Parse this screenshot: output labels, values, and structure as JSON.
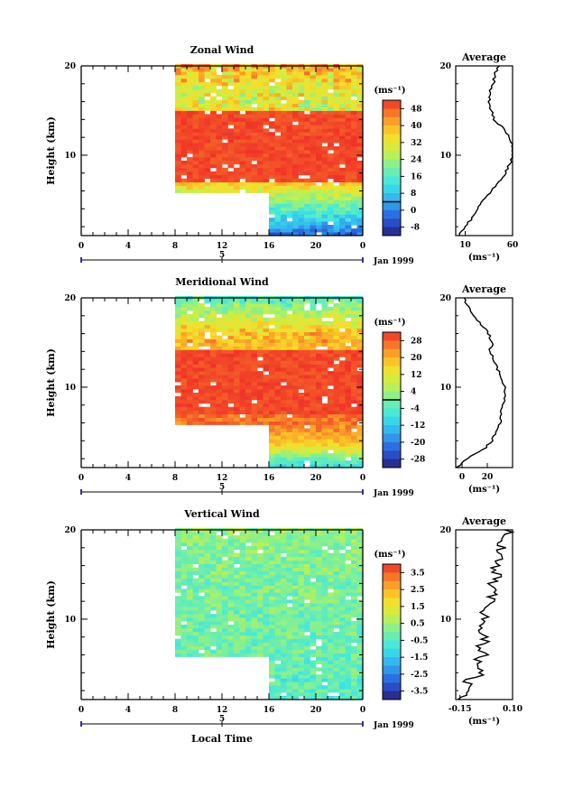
{
  "figure": {
    "xlabel": "Local Time",
    "date_label": "Jan 1999",
    "day_label": "5",
    "profile_title": "Average",
    "colorbar_unit": "(ms⁻¹)"
  },
  "chart_data": [
    {
      "type": "heatmap",
      "title": "Zonal Wind",
      "ylabel": "Height (km)",
      "xlabel": "",
      "x_ticks": [
        "0",
        "4",
        "8",
        "12",
        "16",
        "20",
        "0"
      ],
      "y_ticks": [
        "10",
        "20"
      ],
      "xlim": [
        0,
        24
      ],
      "ylim": [
        1,
        20
      ],
      "colorbar": {
        "ticks": [
          "48",
          "40",
          "32",
          "24",
          "16",
          "8",
          "0",
          "-8"
        ],
        "range": [
          -12,
          52
        ]
      },
      "profile": {
        "title": "Average",
        "xlabel": "(ms⁻¹)",
        "x_ticks": [
          "10",
          "60"
        ],
        "xlim": [
          0,
          60
        ],
        "y_ticks": [
          "10",
          "20"
        ],
        "height": [
          1,
          2,
          3,
          4,
          5,
          6,
          7,
          8,
          9,
          10,
          11,
          12,
          13,
          14,
          15,
          16,
          17,
          18,
          19,
          20
        ],
        "values": [
          3,
          10,
          17,
          23,
          29,
          37,
          45,
          52,
          57,
          60,
          60,
          57,
          50,
          41,
          37,
          35,
          36,
          40,
          41,
          46
        ]
      }
    },
    {
      "type": "heatmap",
      "title": "Meridional Wind",
      "ylabel": "Height (km)",
      "xlabel": "",
      "x_ticks": [
        "0",
        "4",
        "8",
        "12",
        "16",
        "20",
        "0"
      ],
      "y_ticks": [
        "10",
        "20"
      ],
      "xlim": [
        0,
        24
      ],
      "ylim": [
        1,
        20
      ],
      "colorbar": {
        "ticks": [
          "28",
          "20",
          "12",
          "4",
          "-4",
          "-12",
          "-20",
          "-28"
        ],
        "range": [
          -32,
          32
        ]
      },
      "profile": {
        "title": "Average",
        "xlabel": "(ms⁻¹)",
        "x_ticks": [
          "0",
          "20"
        ],
        "xlim": [
          -5,
          40
        ],
        "y_ticks": [
          "10",
          "20"
        ],
        "height": [
          1,
          2,
          3,
          4,
          5,
          6,
          7,
          8,
          9,
          10,
          11,
          12,
          13,
          14,
          15,
          16,
          17,
          18,
          19,
          20
        ],
        "values": [
          -4,
          4,
          17,
          24,
          27,
          30,
          31,
          32,
          34,
          34,
          31,
          28,
          25,
          22,
          24,
          21,
          15,
          10,
          5,
          1
        ]
      }
    },
    {
      "type": "heatmap",
      "title": "Vertical Wind",
      "ylabel": "Height (km)",
      "xlabel": "Local Time",
      "x_ticks": [
        "0",
        "4",
        "8",
        "12",
        "16",
        "20",
        "0"
      ],
      "y_ticks": [
        "10",
        "20"
      ],
      "xlim": [
        0,
        24
      ],
      "ylim": [
        1,
        20
      ],
      "colorbar": {
        "ticks": [
          "3.5",
          "2.5",
          "1.5",
          "0.5",
          "-0.5",
          "-1.5",
          "-2.5",
          "-3.5"
        ],
        "range": [
          -4,
          4
        ]
      },
      "profile": {
        "title": "Average",
        "xlabel": "(ms⁻¹)",
        "x_ticks": [
          "-0.15",
          "0.10"
        ],
        "xlim": [
          -0.17,
          0.1
        ],
        "y_ticks": [
          "10",
          "20"
        ],
        "height": [
          1,
          2,
          3,
          4,
          5,
          6,
          7,
          8,
          9,
          10,
          11,
          12,
          13,
          14,
          15,
          16,
          17,
          18,
          19,
          20
        ],
        "values": [
          -0.13,
          -0.09,
          -0.12,
          -0.05,
          -0.08,
          -0.03,
          -0.06,
          -0.02,
          -0.05,
          -0.02,
          -0.04,
          0.0,
          0.02,
          -0.01,
          0.03,
          0.01,
          0.05,
          0.04,
          0.07,
          0.09
        ]
      }
    }
  ]
}
